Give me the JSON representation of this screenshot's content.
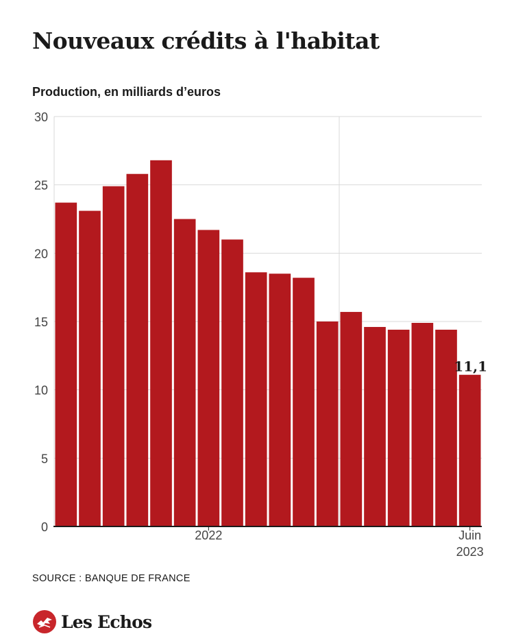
{
  "header": {
    "title": "Nouveaux crédits à l'habitat",
    "subtitle": "Production, en milliards d’euros"
  },
  "footer": {
    "source": "SOURCE : BANQUE DE FRANCE",
    "brand": "Les Echos"
  },
  "colors": {
    "bar": "#b3191e",
    "logo": "#c8262b",
    "grid": "#d9d9d9",
    "text": "#1a1a1a"
  },
  "icons": {
    "brand": "les-echos-logo-icon"
  },
  "chart_data": {
    "type": "bar",
    "ylim": [
      0,
      30
    ],
    "yticks": [
      "0",
      "5",
      "10",
      "15",
      "20",
      "25",
      "30"
    ],
    "x_tick_labels": [
      {
        "label": "2022",
        "index": 6
      },
      {
        "label": "Juin 2023",
        "index": 17
      }
    ],
    "values": [
      23.7,
      23.1,
      24.9,
      25.8,
      26.8,
      22.5,
      21.7,
      21.0,
      18.6,
      18.5,
      18.2,
      15.0,
      15.7,
      14.6,
      14.4,
      14.9,
      14.4,
      11.1
    ],
    "data_labels": [
      {
        "index": 17,
        "text": "11,1"
      }
    ],
    "grid": true
  }
}
